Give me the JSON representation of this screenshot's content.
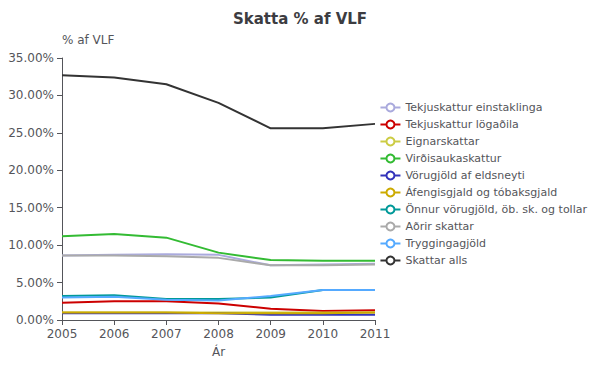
{
  "chart_data": {
    "type": "line",
    "title": "Skatta % af VLF",
    "xlabel": "Ár",
    "ylabel": "% af VLF",
    "x": [
      2005,
      2006,
      2007,
      2008,
      2009,
      2010,
      2011
    ],
    "series": [
      {
        "name": "Tekjuskattur einstaklinga",
        "color": "#aaaadd",
        "values": [
          0.086,
          0.087,
          0.088,
          0.087,
          0.073,
          0.074,
          0.075
        ]
      },
      {
        "name": "Tekjuskattur lögaðila",
        "color": "#cc0000",
        "values": [
          0.023,
          0.025,
          0.025,
          0.022,
          0.015,
          0.012,
          0.013
        ]
      },
      {
        "name": "Eignarskattar",
        "color": "#cccc44",
        "values": [
          0.01,
          0.01,
          0.01,
          0.01,
          0.01,
          0.01,
          0.01
        ]
      },
      {
        "name": "Virðisaukaskattur",
        "color": "#33bb33",
        "values": [
          0.112,
          0.115,
          0.11,
          0.09,
          0.08,
          0.079,
          0.079
        ]
      },
      {
        "name": "Vörugjöld af eldsneyti",
        "color": "#3333bb",
        "values": [
          0.009,
          0.009,
          0.009,
          0.009,
          0.007,
          0.007,
          0.007
        ]
      },
      {
        "name": "Áfengisgjald og tóbaksgjald",
        "color": "#ccaa00",
        "values": [
          0.01,
          0.01,
          0.01,
          0.009,
          0.009,
          0.009,
          0.01
        ]
      },
      {
        "name": "Önnur vörugjöld, öb. sk. og tollar",
        "color": "#009999",
        "values": [
          0.032,
          0.033,
          0.028,
          0.028,
          0.03,
          0.04,
          0.04
        ]
      },
      {
        "name": "Aðrir skattar",
        "color": "#aaaaaa",
        "values": [
          0.086,
          0.086,
          0.085,
          0.083,
          0.073,
          0.073,
          0.074
        ]
      },
      {
        "name": "Tryggingagjöld",
        "color": "#55aaff",
        "values": [
          0.03,
          0.031,
          0.027,
          0.026,
          0.032,
          0.04,
          0.04
        ]
      },
      {
        "name": "Skattar alls",
        "color": "#333333",
        "values": [
          0.327,
          0.324,
          0.315,
          0.29,
          0.256,
          0.256,
          0.262
        ]
      }
    ],
    "xlim": [
      2005,
      2011
    ],
    "xticks": [
      2005,
      2006,
      2007,
      2008,
      2009,
      2010,
      2011
    ],
    "ylim": [
      0.0,
      0.35
    ],
    "yticks": [
      {
        "value": 0.0,
        "label": "0.00%"
      },
      {
        "value": 0.05,
        "label": "5.00%"
      },
      {
        "value": 0.1,
        "label": "10.00%"
      },
      {
        "value": 0.15,
        "label": "15.00%"
      },
      {
        "value": 0.2,
        "label": "20.00%"
      },
      {
        "value": 0.25,
        "label": "25.00%"
      },
      {
        "value": 0.3,
        "label": "30.00%"
      },
      {
        "value": 0.35,
        "label": "35.00%"
      }
    ],
    "grid": false,
    "legend": "right"
  }
}
